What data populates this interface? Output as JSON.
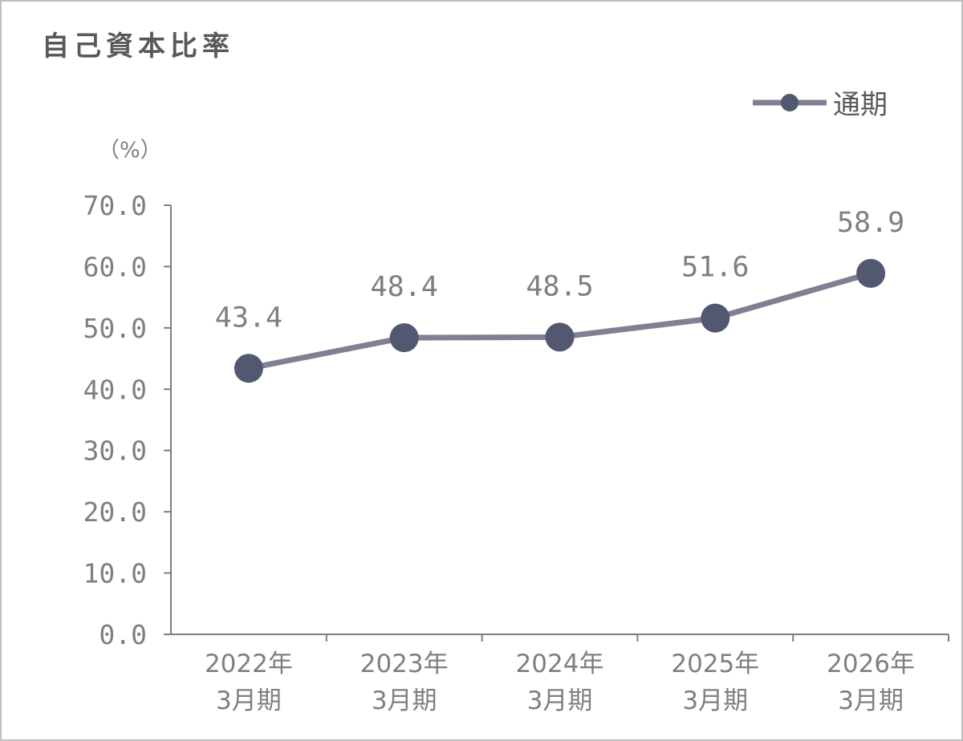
{
  "chart_data": {
    "type": "line",
    "title": "自己資本比率",
    "ylabel": "（%）",
    "ylim": [
      0,
      70
    ],
    "yticks": [
      "70.0",
      "60.0",
      "50.0",
      "40.0",
      "30.0",
      "20.0",
      "10.0",
      "0.0"
    ],
    "categories": [
      [
        "2022年",
        "3月期"
      ],
      [
        "2023年",
        "3月期"
      ],
      [
        "2024年",
        "3月期"
      ],
      [
        "2025年",
        "3月期"
      ],
      [
        "2026年",
        "3月期"
      ]
    ],
    "series": [
      {
        "name": "通期",
        "values": [
          43.4,
          48.4,
          48.5,
          51.6,
          58.9
        ],
        "labels": [
          "43.4",
          "48.4",
          "48.5",
          "51.6",
          "58.9"
        ],
        "color": "#7f8093",
        "marker_color": "#525870"
      }
    ],
    "grid": false,
    "legend_position": "top-right"
  }
}
